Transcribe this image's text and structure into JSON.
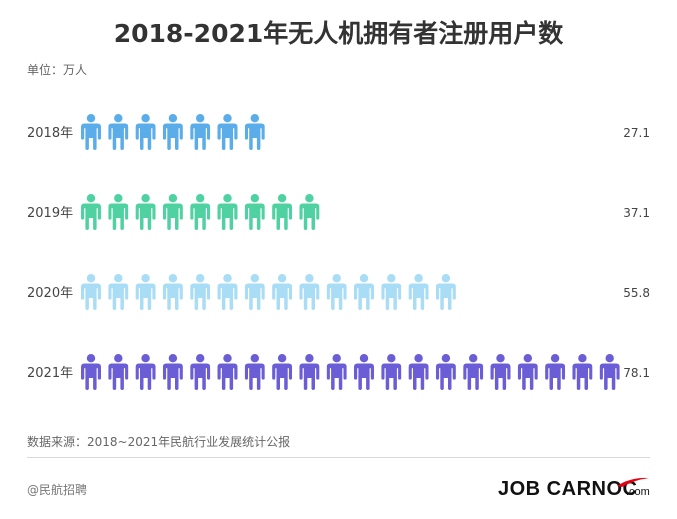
{
  "chart_data": {
    "type": "pictogram-bar",
    "title": "2018-2021年无人机拥有者注册用户数",
    "unit_label": "单位：万人",
    "categories": [
      "2018年",
      "2019年",
      "2020年",
      "2021年"
    ],
    "values": [
      27.1,
      37.1,
      55.8,
      78.1
    ],
    "value_labels": [
      "27.1",
      "37.1",
      "55.8",
      "78.1"
    ],
    "colors": [
      "#5aade8",
      "#4fd1a1",
      "#a9dcf5",
      "#6a5dd6"
    ],
    "icon": "person-icon"
  },
  "source": "数据来源：2018~2021年民航行业发展统计公报",
  "footer": {
    "credit": "@民航招聘",
    "logo_text": "JOB CARNOC",
    "logo_suffix": ".com",
    "logo_accent_color": "#e60012"
  }
}
